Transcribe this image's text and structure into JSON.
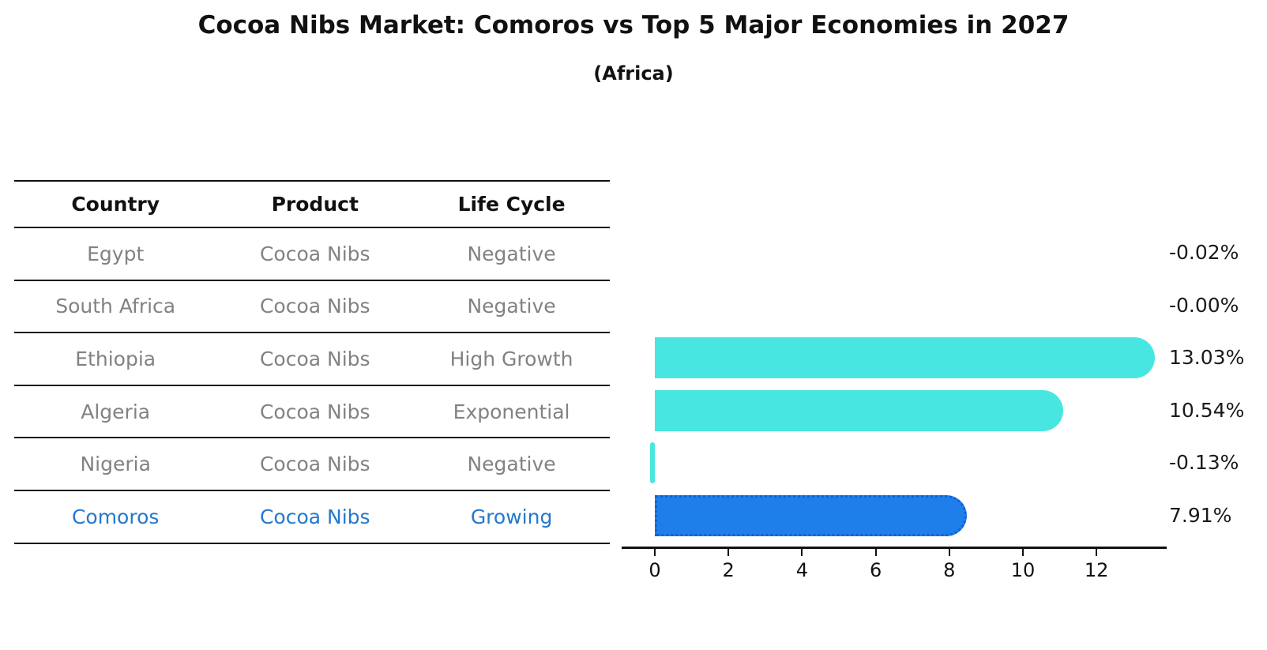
{
  "title": "Cocoa Nibs Market: Comoros vs Top 5 Major Economies in 2027",
  "subtitle": "(Africa)",
  "table": {
    "headers": [
      "Country",
      "Product",
      "Life Cycle"
    ],
    "rows": [
      {
        "country": "Egypt",
        "product": "Cocoa Nibs",
        "life_cycle": "Negative",
        "highlight": false
      },
      {
        "country": "South Africa",
        "product": "Cocoa Nibs",
        "life_cycle": "Negative",
        "highlight": false
      },
      {
        "country": "Ethiopia",
        "product": "Cocoa Nibs",
        "life_cycle": "High Growth",
        "highlight": false
      },
      {
        "country": "Algeria",
        "product": "Cocoa Nibs",
        "life_cycle": "Exponential",
        "highlight": false
      },
      {
        "country": "Nigeria",
        "product": "Cocoa Nibs",
        "life_cycle": "Negative",
        "highlight": false
      },
      {
        "country": "Comoros",
        "product": "Cocoa Nibs",
        "life_cycle": "Growing",
        "highlight": true
      }
    ]
  },
  "chart_data": {
    "type": "bar",
    "orientation": "horizontal",
    "title": "Cocoa Nibs Market: Comoros vs Top 5 Major Economies in 2027",
    "subtitle": "(Africa)",
    "categories": [
      "Egypt",
      "South Africa",
      "Ethiopia",
      "Algeria",
      "Nigeria",
      "Comoros"
    ],
    "values": [
      -0.02,
      -0.0,
      13.03,
      10.54,
      -0.13,
      7.91
    ],
    "value_labels": [
      "-0.02%",
      "-0.00%",
      "13.03%",
      "10.54%",
      "-0.13%",
      "7.91%"
    ],
    "highlight_index": 5,
    "x_ticks": [
      0,
      2,
      4,
      6,
      8,
      10,
      12
    ],
    "xlim": [
      -0.9,
      13.9
    ],
    "xlabel": "",
    "ylabel": "",
    "grid": false,
    "legend": false,
    "colors": {
      "bar_default": "#47e6e0",
      "bar_highlight": "#1e7feb",
      "highlight_border": "#0f62d6",
      "highlight_text": "#2478cc",
      "table_text": "#828282",
      "axis": "#111111"
    }
  }
}
